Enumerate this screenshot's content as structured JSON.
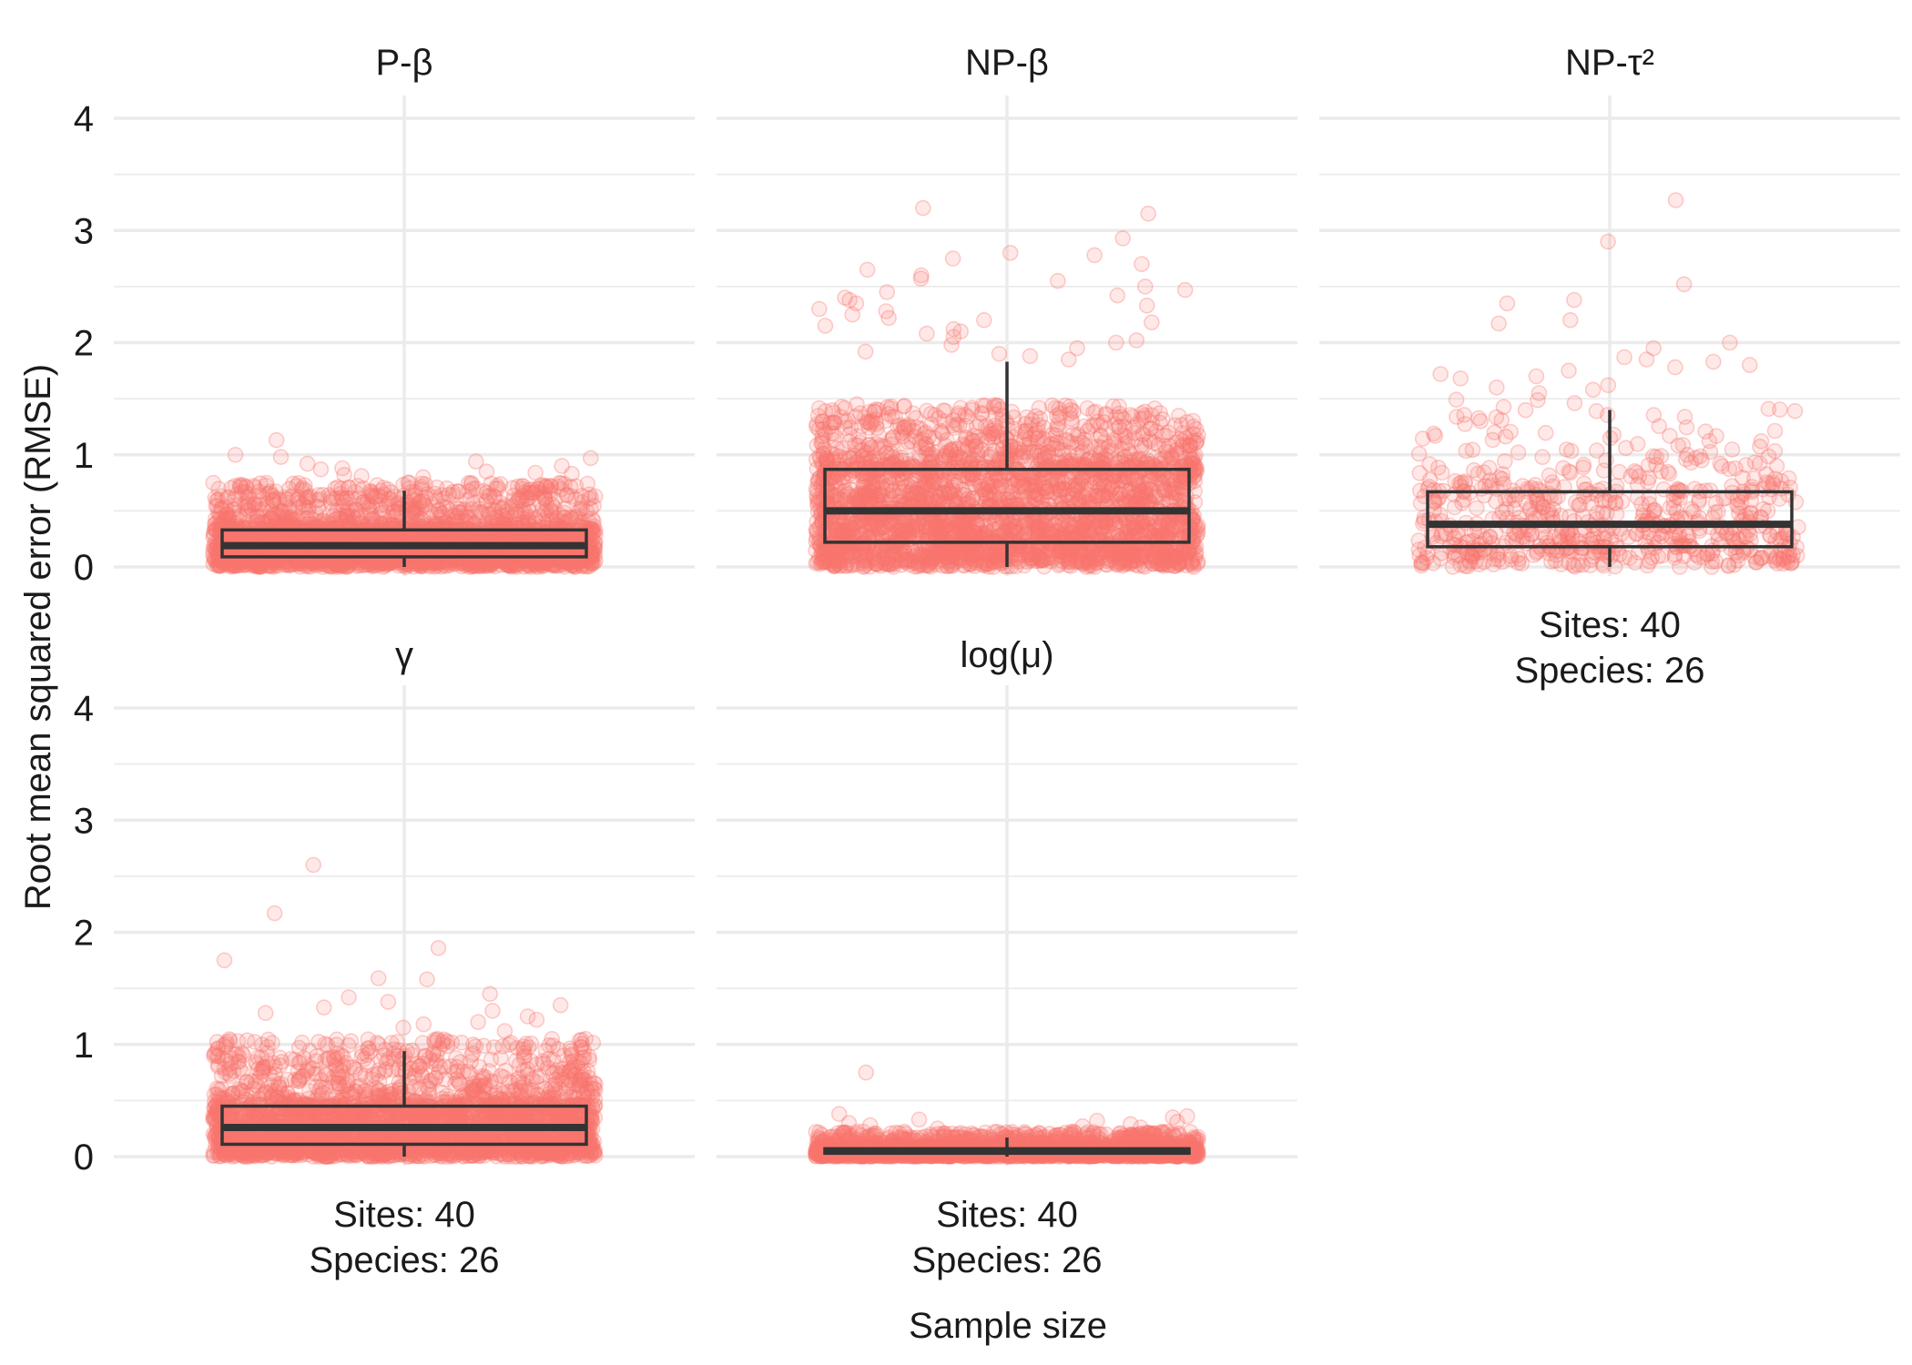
{
  "chart_data": {
    "type": "boxplot",
    "xlabel": "Sample size",
    "ylabel": "Root mean squared error (RMSE)",
    "ylim": [
      0,
      4
    ],
    "yticks": [
      0,
      1,
      2,
      3,
      4
    ],
    "grid": true,
    "point_color": "#f8766d",
    "box_color": "#333333",
    "panels": [
      {
        "title": "P-β",
        "category": "Sites: 40\nSpecies: 26",
        "category_lines": [
          "Sites: 40",
          "Species: 26"
        ],
        "show_x_label": false,
        "box": {
          "whisker_low": 0.0,
          "q1": 0.09,
          "median": 0.19,
          "q3": 0.33,
          "whisker_high": 0.68
        },
        "points": {
          "count": 3000,
          "dense_max": 0.75,
          "outliers": [
            1.13,
            1.0,
            0.98,
            0.97,
            0.94,
            0.92,
            0.9,
            0.88,
            0.87,
            0.85,
            0.84,
            0.83,
            0.82,
            0.81,
            0.8
          ]
        }
      },
      {
        "title": "NP-β",
        "category": "Sites: 40\nSpecies: 26",
        "category_lines": [
          "Sites: 40",
          "Species: 26"
        ],
        "show_x_label": false,
        "box": {
          "whisker_low": 0.0,
          "q1": 0.22,
          "median": 0.5,
          "q3": 0.87,
          "whisker_high": 1.83
        },
        "points": {
          "count": 3000,
          "dense_max": 1.45,
          "outliers": [
            3.2,
            3.15,
            2.93,
            2.8,
            2.78,
            2.75,
            2.7,
            2.65,
            2.6,
            2.57,
            2.55,
            2.5,
            2.47,
            2.45,
            2.42,
            2.4,
            2.38,
            2.35,
            2.33,
            2.3,
            2.28,
            2.25,
            2.22,
            2.2,
            2.18,
            2.15,
            2.12,
            2.1,
            2.08,
            2.05,
            2.02,
            2.0,
            1.98,
            1.95,
            1.92,
            1.9,
            1.88,
            1.85
          ]
        }
      },
      {
        "title": "NP-τ²",
        "category": "Sites: 40\nSpecies: 26",
        "category_lines": [
          "Sites: 40",
          "Species: 26"
        ],
        "show_x_label": true,
        "box": {
          "whisker_low": 0.0,
          "q1": 0.18,
          "median": 0.38,
          "q3": 0.67,
          "whisker_high": 1.4
        },
        "points": {
          "count": 650,
          "dense_max": 1.5,
          "outliers": [
            3.27,
            2.9,
            2.52,
            2.38,
            2.35,
            2.2,
            2.17,
            2.0,
            1.95,
            1.87,
            1.85,
            1.83,
            1.8,
            1.78,
            1.75,
            1.72,
            1.7,
            1.68,
            1.62,
            1.6,
            1.58,
            1.55
          ]
        }
      },
      {
        "title": "γ",
        "category": "Sites: 40\nSpecies: 26",
        "category_lines": [
          "Sites: 40",
          "Species: 26"
        ],
        "show_x_label": true,
        "box": {
          "whisker_low": 0.0,
          "q1": 0.11,
          "median": 0.26,
          "q3": 0.45,
          "whisker_high": 0.94
        },
        "points": {
          "count": 3000,
          "dense_max": 1.05,
          "outliers": [
            2.6,
            2.17,
            1.86,
            1.75,
            1.59,
            1.58,
            1.45,
            1.42,
            1.38,
            1.35,
            1.33,
            1.3,
            1.28,
            1.25,
            1.22,
            1.2,
            1.18,
            1.15,
            1.12
          ]
        }
      },
      {
        "title": "log(μ)",
        "category": "Sites: 40\nSpecies: 26",
        "category_lines": [
          "Sites: 40",
          "Species: 26"
        ],
        "show_x_label": true,
        "box": {
          "whisker_low": 0.0,
          "q1": 0.03,
          "median": 0.05,
          "q3": 0.07,
          "whisker_high": 0.17
        },
        "points": {
          "count": 3000,
          "dense_max": 0.22,
          "outliers": [
            0.75,
            0.38,
            0.36,
            0.35,
            0.33,
            0.32,
            0.31,
            0.3,
            0.29,
            0.28,
            0.27,
            0.26,
            0.25
          ]
        }
      }
    ]
  }
}
